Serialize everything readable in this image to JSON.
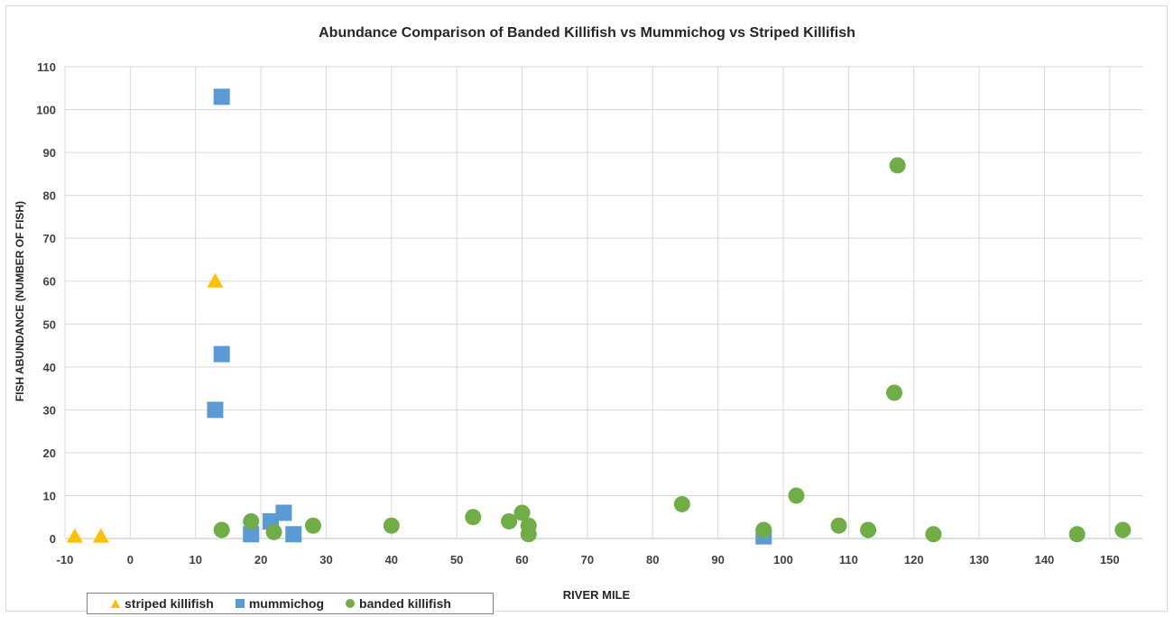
{
  "chart_data": {
    "type": "scatter",
    "title": "Abundance Comparison of Banded Killifish vs Mummichog vs Striped Killifish",
    "xlabel": "RIVER MILE",
    "ylabel": "FISH ABUNDANCE (NUMBER OF FISH)",
    "xlim": [
      -10,
      155
    ],
    "ylim": [
      0,
      110
    ],
    "x_ticks": [
      -10,
      0,
      10,
      20,
      30,
      40,
      50,
      60,
      70,
      80,
      90,
      100,
      110,
      120,
      130,
      140,
      150
    ],
    "y_ticks": [
      0,
      10,
      20,
      30,
      40,
      50,
      60,
      70,
      80,
      90,
      100,
      110
    ],
    "grid": true,
    "legend_position": "bottom-left",
    "series": [
      {
        "name": "striped killifish",
        "marker": "triangle",
        "color": "#ffc000",
        "points": [
          [
            -8.5,
            0.5
          ],
          [
            -4.5,
            0.5
          ],
          [
            13,
            60
          ]
        ]
      },
      {
        "name": "mummichog",
        "marker": "square",
        "color": "#5b9bd5",
        "points": [
          [
            14,
            103
          ],
          [
            14,
            43
          ],
          [
            13,
            30
          ],
          [
            18.5,
            1
          ],
          [
            21.5,
            4
          ],
          [
            23.5,
            6
          ],
          [
            25,
            1
          ],
          [
            97,
            0.5
          ]
        ]
      },
      {
        "name": "banded killifish",
        "marker": "circle",
        "color": "#70ad47",
        "points": [
          [
            14,
            2
          ],
          [
            18.5,
            4
          ],
          [
            22,
            1.5
          ],
          [
            28,
            3
          ],
          [
            40,
            3
          ],
          [
            52.5,
            5
          ],
          [
            58,
            4
          ],
          [
            60,
            6
          ],
          [
            61,
            3
          ],
          [
            61,
            1
          ],
          [
            84.5,
            8
          ],
          [
            97,
            2
          ],
          [
            102,
            10
          ],
          [
            108.5,
            3
          ],
          [
            113,
            2
          ],
          [
            117,
            34
          ],
          [
            117.5,
            87
          ],
          [
            123,
            1
          ],
          [
            145,
            1
          ],
          [
            152,
            2
          ]
        ]
      }
    ]
  }
}
